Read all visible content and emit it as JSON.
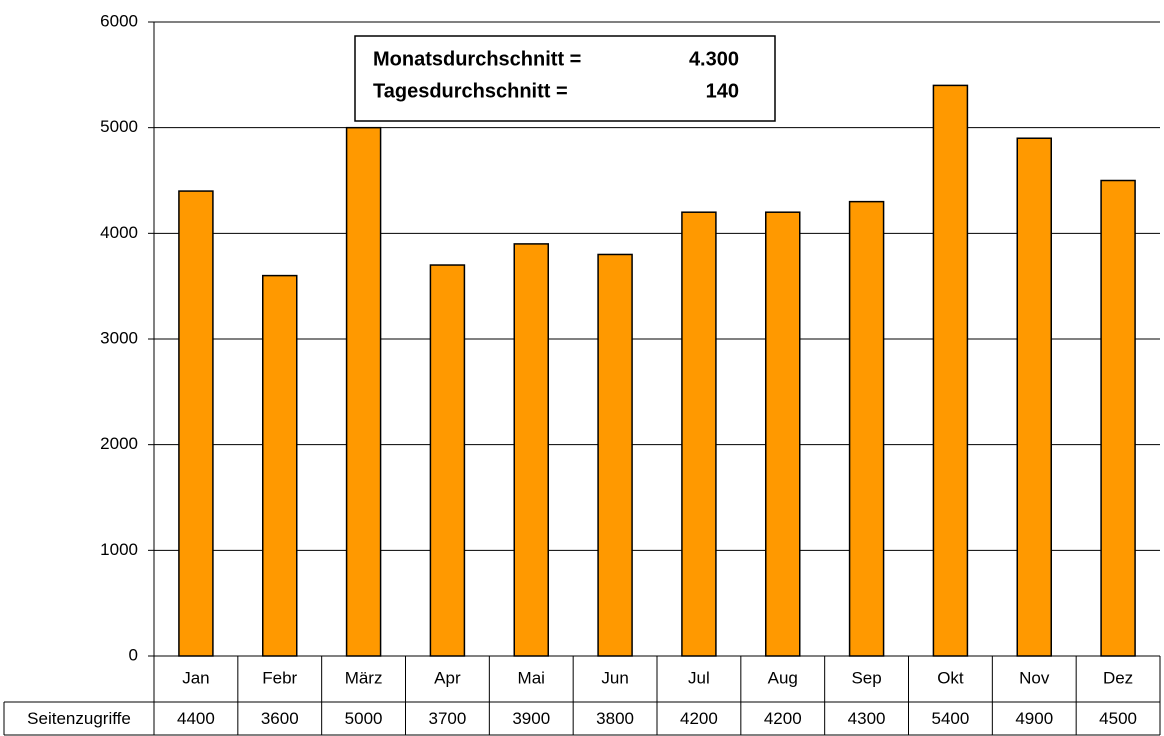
{
  "chart_data": {
    "type": "bar",
    "categories": [
      "Jan",
      "Febr",
      "März",
      "Apr",
      "Mai",
      "Jun",
      "Jul",
      "Aug",
      "Sep",
      "Okt",
      "Nov",
      "Dez"
    ],
    "series": [
      {
        "name": "Seitenzugriffe",
        "color": "#ff9900",
        "values": [
          4400,
          3600,
          5000,
          3700,
          3900,
          3800,
          4200,
          4200,
          4300,
          5400,
          4900,
          4500
        ]
      }
    ],
    "ylim": [
      0,
      6000
    ],
    "yticks": [
      0,
      1000,
      2000,
      3000,
      4000,
      5000,
      6000
    ],
    "grid": true,
    "annotations": [
      {
        "label": "Monatsdurchschnitt =",
        "value": "4.300"
      },
      {
        "label": "Tagesdurchschnitt =",
        "value": "140"
      }
    ]
  }
}
